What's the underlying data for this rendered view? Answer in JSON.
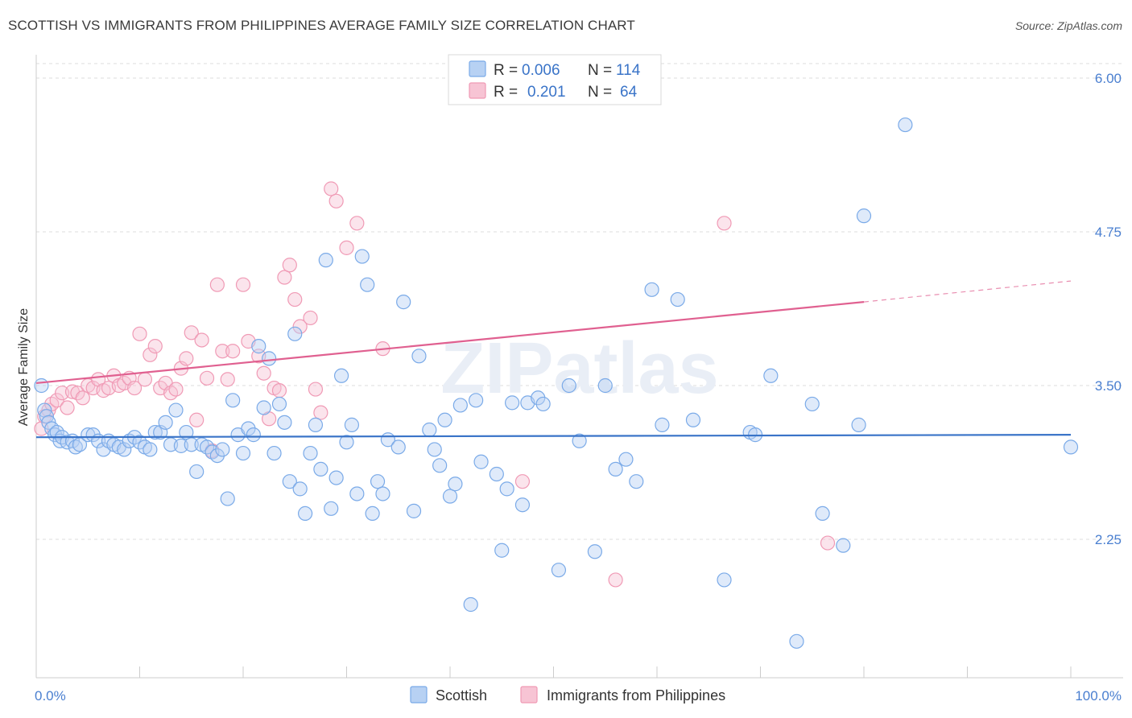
{
  "title": "SCOTTISH VS IMMIGRANTS FROM PHILIPPINES AVERAGE FAMILY SIZE CORRELATION CHART",
  "source": "Source: ZipAtlas.com",
  "watermark": "ZIPatlas",
  "colors": {
    "scottish": "#7aaae8",
    "scottish_fill": "#b7d1f3",
    "scottish_line": "#3a74c8",
    "philippines": "#f09ab5",
    "philippines_fill": "#f7c4d4",
    "philippines_line": "#e06090",
    "tick": "#4a7fd0",
    "grid": "#dddddd"
  },
  "chart_data": {
    "type": "scatter",
    "xlabel": "",
    "ylabel": "Average Family Size",
    "xlim": [
      0,
      100
    ],
    "ylim": [
      1.0,
      6.2
    ],
    "x_tick_labels": [
      {
        "value": 0,
        "label": "0.0%"
      },
      {
        "value": 100,
        "label": "100.0%"
      }
    ],
    "y_ticks": [
      {
        "value": 2.25,
        "label": "2.25"
      },
      {
        "value": 3.5,
        "label": "3.50"
      },
      {
        "value": 4.75,
        "label": "4.75"
      },
      {
        "value": 6.0,
        "label": "6.00"
      }
    ],
    "legend": {
      "position": "top-center",
      "rows": [
        {
          "r_label": "R =",
          "r_value": "0.006",
          "n_label": "N =",
          "n_value": "114"
        },
        {
          "r_label": "R =",
          "r_value": "0.201",
          "n_label": "N =",
          "n_value": "64"
        }
      ]
    },
    "series": [
      {
        "name": "Scottish",
        "trend": {
          "x": [
            0,
            100
          ],
          "y": [
            3.08,
            3.1
          ]
        },
        "points": [
          [
            0.5,
            3.5
          ],
          [
            0.8,
            3.3
          ],
          [
            1.0,
            3.25
          ],
          [
            1.2,
            3.2
          ],
          [
            1.5,
            3.15
          ],
          [
            1.8,
            3.1
          ],
          [
            2.0,
            3.12
          ],
          [
            2.3,
            3.05
          ],
          [
            2.5,
            3.08
          ],
          [
            3.0,
            3.04
          ],
          [
            3.5,
            3.05
          ],
          [
            3.8,
            3.0
          ],
          [
            4.2,
            3.02
          ],
          [
            5.0,
            3.1
          ],
          [
            5.5,
            3.1
          ],
          [
            6.0,
            3.05
          ],
          [
            6.5,
            2.98
          ],
          [
            7.0,
            3.05
          ],
          [
            7.5,
            3.02
          ],
          [
            8.0,
            3.0
          ],
          [
            8.5,
            2.98
          ],
          [
            9.0,
            3.05
          ],
          [
            9.5,
            3.08
          ],
          [
            10.0,
            3.04
          ],
          [
            10.5,
            3.0
          ],
          [
            11.0,
            2.98
          ],
          [
            11.5,
            3.12
          ],
          [
            12.0,
            3.12
          ],
          [
            12.5,
            3.2
          ],
          [
            13.0,
            3.02
          ],
          [
            13.5,
            3.3
          ],
          [
            14.0,
            3.01
          ],
          [
            14.5,
            3.12
          ],
          [
            15.0,
            3.02
          ],
          [
            15.5,
            2.8
          ],
          [
            16.0,
            3.02
          ],
          [
            16.5,
            3.0
          ],
          [
            17.0,
            2.96
          ],
          [
            17.5,
            2.93
          ],
          [
            18.0,
            2.98
          ],
          [
            18.5,
            2.58
          ],
          [
            19.0,
            3.38
          ],
          [
            19.5,
            3.1
          ],
          [
            20.0,
            2.95
          ],
          [
            20.5,
            3.15
          ],
          [
            21.0,
            3.1
          ],
          [
            21.5,
            3.82
          ],
          [
            22.0,
            3.32
          ],
          [
            22.5,
            3.72
          ],
          [
            23.0,
            2.95
          ],
          [
            23.5,
            3.35
          ],
          [
            24.0,
            3.2
          ],
          [
            24.5,
            2.72
          ],
          [
            25.0,
            3.92
          ],
          [
            25.5,
            2.66
          ],
          [
            26.0,
            2.46
          ],
          [
            26.5,
            2.95
          ],
          [
            27.0,
            3.18
          ],
          [
            27.5,
            2.82
          ],
          [
            28.0,
            4.52
          ],
          [
            28.5,
            2.5
          ],
          [
            29.0,
            2.75
          ],
          [
            29.5,
            3.58
          ],
          [
            30.0,
            3.04
          ],
          [
            30.5,
            3.18
          ],
          [
            31.0,
            2.62
          ],
          [
            31.5,
            4.55
          ],
          [
            32.0,
            4.32
          ],
          [
            32.5,
            2.46
          ],
          [
            33.0,
            2.72
          ],
          [
            33.5,
            2.62
          ],
          [
            34.0,
            3.06
          ],
          [
            35.0,
            3.0
          ],
          [
            35.5,
            4.18
          ],
          [
            36.5,
            2.48
          ],
          [
            37.0,
            3.74
          ],
          [
            38.0,
            3.14
          ],
          [
            38.5,
            2.98
          ],
          [
            39.0,
            2.85
          ],
          [
            39.5,
            3.22
          ],
          [
            40.0,
            2.6
          ],
          [
            40.5,
            2.7
          ],
          [
            41.0,
            3.34
          ],
          [
            42.0,
            1.72
          ],
          [
            42.5,
            3.38
          ],
          [
            43.0,
            2.88
          ],
          [
            44.5,
            2.78
          ],
          [
            45.0,
            2.16
          ],
          [
            45.5,
            2.66
          ],
          [
            46.0,
            3.36
          ],
          [
            47.0,
            2.53
          ],
          [
            47.5,
            3.36
          ],
          [
            48.5,
            3.4
          ],
          [
            49.0,
            3.35
          ],
          [
            50.5,
            2.0
          ],
          [
            51.5,
            3.5
          ],
          [
            52.5,
            3.05
          ],
          [
            54.0,
            2.15
          ],
          [
            55.0,
            3.5
          ],
          [
            56.0,
            2.82
          ],
          [
            57.0,
            2.9
          ],
          [
            58.0,
            2.72
          ],
          [
            59.5,
            4.28
          ],
          [
            60.5,
            3.18
          ],
          [
            62.0,
            4.2
          ],
          [
            63.5,
            3.22
          ],
          [
            66.5,
            1.92
          ],
          [
            69.0,
            3.12
          ],
          [
            69.5,
            3.1
          ],
          [
            71.0,
            3.58
          ],
          [
            73.5,
            1.42
          ],
          [
            75.0,
            3.35
          ],
          [
            76.0,
            2.46
          ],
          [
            78.0,
            2.2
          ],
          [
            79.5,
            3.18
          ],
          [
            80.0,
            4.88
          ],
          [
            84.0,
            5.62
          ],
          [
            100.0,
            3.0
          ]
        ]
      },
      {
        "name": "Immigrants from Philippines",
        "trend": {
          "x": [
            0,
            80
          ],
          "y": [
            3.52,
            4.18
          ]
        },
        "trend_dashed": {
          "x": [
            80,
            100
          ],
          "y": [
            4.18,
            4.35
          ]
        },
        "points": [
          [
            0.5,
            3.15
          ],
          [
            0.8,
            3.25
          ],
          [
            1.2,
            3.3
          ],
          [
            1.5,
            3.35
          ],
          [
            2.0,
            3.38
          ],
          [
            2.5,
            3.44
          ],
          [
            3.0,
            3.32
          ],
          [
            3.5,
            3.45
          ],
          [
            4.0,
            3.44
          ],
          [
            4.5,
            3.4
          ],
          [
            5.0,
            3.5
          ],
          [
            5.5,
            3.48
          ],
          [
            6.0,
            3.55
          ],
          [
            6.5,
            3.46
          ],
          [
            7.0,
            3.48
          ],
          [
            7.5,
            3.58
          ],
          [
            8.0,
            3.5
          ],
          [
            8.5,
            3.52
          ],
          [
            9.0,
            3.56
          ],
          [
            9.5,
            3.48
          ],
          [
            10.0,
            3.92
          ],
          [
            10.5,
            3.55
          ],
          [
            11.0,
            3.75
          ],
          [
            11.5,
            3.82
          ],
          [
            12.0,
            3.48
          ],
          [
            12.5,
            3.52
          ],
          [
            13.0,
            3.44
          ],
          [
            13.5,
            3.47
          ],
          [
            14.0,
            3.64
          ],
          [
            14.5,
            3.72
          ],
          [
            15.0,
            3.93
          ],
          [
            15.5,
            3.22
          ],
          [
            16.0,
            3.87
          ],
          [
            16.5,
            3.56
          ],
          [
            17.0,
            2.97
          ],
          [
            17.5,
            4.32
          ],
          [
            18.0,
            3.78
          ],
          [
            18.5,
            3.55
          ],
          [
            19.0,
            3.78
          ],
          [
            20.0,
            4.32
          ],
          [
            20.5,
            3.86
          ],
          [
            21.5,
            3.74
          ],
          [
            22.0,
            3.6
          ],
          [
            22.5,
            3.23
          ],
          [
            23.0,
            3.48
          ],
          [
            23.5,
            3.46
          ],
          [
            24.0,
            4.38
          ],
          [
            24.5,
            4.48
          ],
          [
            25.0,
            4.2
          ],
          [
            25.5,
            3.98
          ],
          [
            26.5,
            4.05
          ],
          [
            27.0,
            3.47
          ],
          [
            27.5,
            3.28
          ],
          [
            28.5,
            5.1
          ],
          [
            29.0,
            5.0
          ],
          [
            30.0,
            4.62
          ],
          [
            31.0,
            4.82
          ],
          [
            33.5,
            3.8
          ],
          [
            47.0,
            2.72
          ],
          [
            56.0,
            1.92
          ],
          [
            66.5,
            4.82
          ],
          [
            76.5,
            2.22
          ]
        ]
      }
    ]
  },
  "bottom_legend": [
    {
      "label": "Scottish"
    },
    {
      "label": "Immigrants from Philippines"
    }
  ]
}
